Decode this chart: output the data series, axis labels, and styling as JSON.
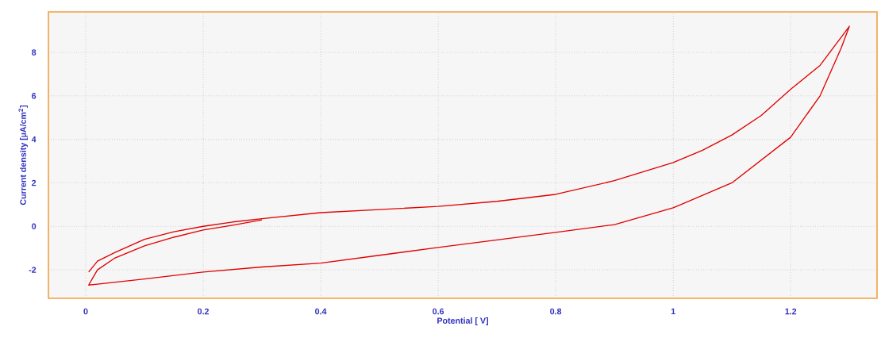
{
  "chart_data": {
    "type": "line",
    "xlabel": "Potential [ V]",
    "ylabel": "Current density [µA/cm$^{2}$]",
    "xlim": [
      -0.0635,
      1.347
    ],
    "ylim": [
      -3.31,
      9.86
    ],
    "xticks": [
      0,
      0.2,
      0.4,
      0.6,
      0.8,
      1,
      1.2
    ],
    "yticks": [
      -2,
      0,
      2,
      4,
      6,
      8
    ],
    "grid": true,
    "color": "#e00000",
    "x": [
      0.005,
      0.02,
      0.05,
      0.1,
      0.15,
      0.2,
      0.25,
      0.3,
      0.4,
      0.5,
      0.6,
      0.7,
      0.8,
      0.9,
      1.0,
      1.05,
      1.1,
      1.15,
      1.2,
      1.25,
      1.3,
      1.286,
      1.25,
      1.2,
      1.1,
      1.0,
      0.9,
      0.8,
      0.6,
      0.5,
      0.4,
      0.3,
      0.2,
      0.1,
      0.02,
      0.005,
      0.02,
      0.05,
      0.1,
      0.15,
      0.2,
      0.25,
      0.3
    ],
    "values": [
      -2.1,
      -1.6,
      -1.2,
      -0.6,
      -0.25,
      0.0,
      0.2,
      0.35,
      0.63,
      0.77,
      0.92,
      1.15,
      1.47,
      2.1,
      2.93,
      3.5,
      4.2,
      5.1,
      6.3,
      7.4,
      9.2,
      8.2,
      6.0,
      4.1,
      2.0,
      0.85,
      0.08,
      -0.28,
      -0.97,
      -1.33,
      -1.69,
      -1.87,
      -2.1,
      -2.42,
      -2.66,
      -2.7,
      -2.0,
      -1.45,
      -0.9,
      -0.5,
      -0.17,
      0.05,
      0.3
    ]
  }
}
